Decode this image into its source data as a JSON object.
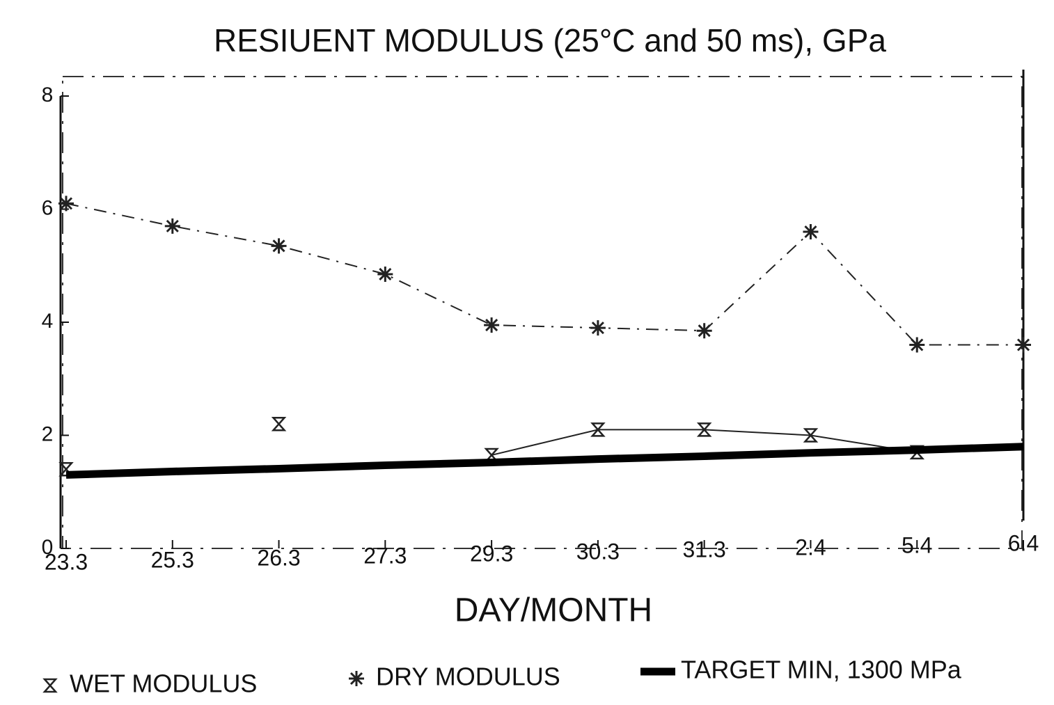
{
  "chart_data": {
    "type": "line",
    "title": "RESIUENT MODULUS (25°C and 50 ms), GPa",
    "xlabel": "DAY/MONTH",
    "categories": [
      "23.3",
      "25.3",
      "26.3",
      "27.3",
      "29.3",
      "30.3",
      "31.3",
      "2.4",
      "5.4",
      "6.4"
    ],
    "series": [
      {
        "name": "WET MODULUS",
        "color": "#222222",
        "values": [
          1.4,
          null,
          2.2,
          null,
          1.65,
          2.1,
          2.1,
          2.0,
          1.7,
          null
        ]
      },
      {
        "name": "DRY MODULUS",
        "color": "#222222",
        "values": [
          6.1,
          5.7,
          5.35,
          4.85,
          3.95,
          3.9,
          3.85,
          5.6,
          3.6,
          3.6
        ]
      },
      {
        "name": "TARGET MIN, 1300 MPa",
        "color": "#000000",
        "values": [
          1.3,
          1.36,
          1.41,
          1.47,
          1.52,
          1.58,
          1.63,
          1.69,
          1.74,
          1.8
        ]
      }
    ],
    "ylim": [
      0,
      8
    ],
    "yticks": [
      0,
      2,
      4,
      6,
      8
    ]
  }
}
